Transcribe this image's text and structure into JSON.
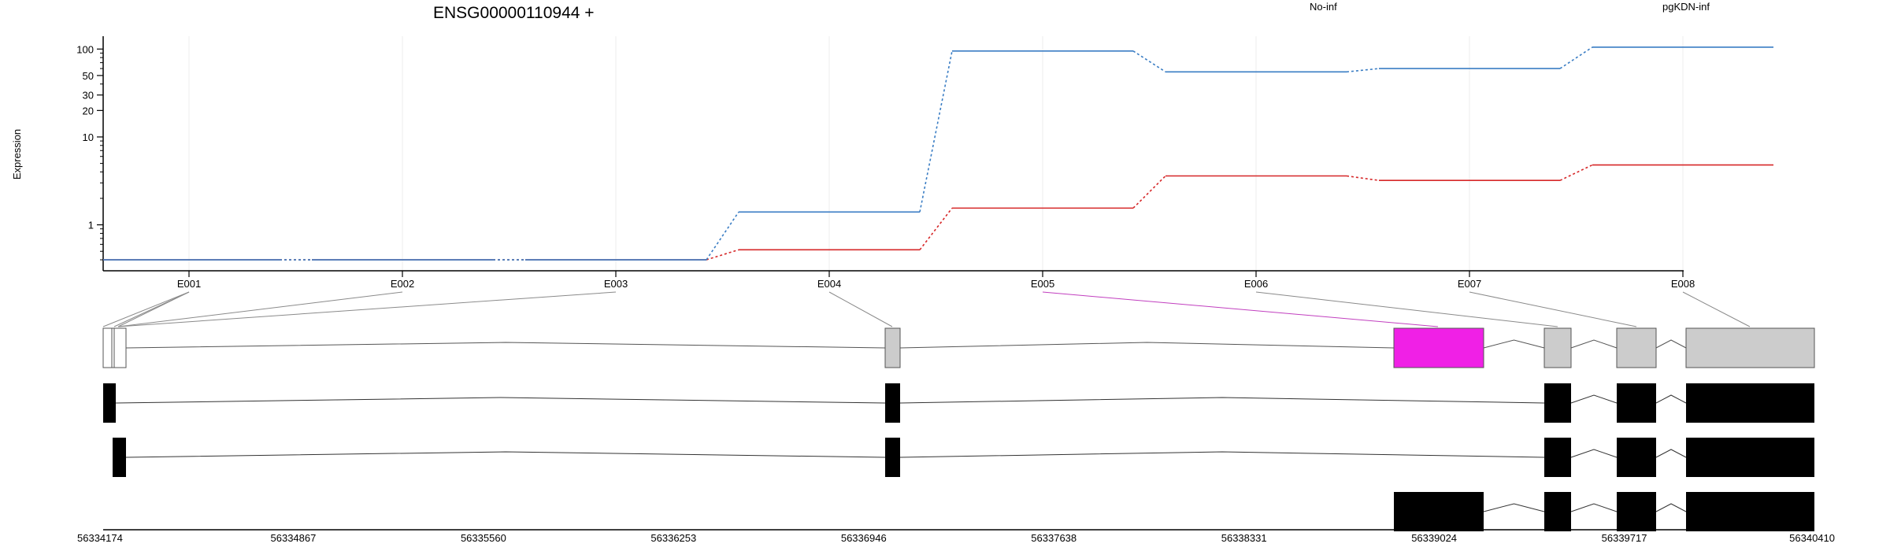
{
  "chart_data": {
    "type": "line",
    "title": "ENSG00000110944 +",
    "ylabel": "Expression",
    "xlabel": "",
    "y_scale": "log",
    "y_ticks": [
      1,
      10,
      20,
      30,
      50,
      100
    ],
    "categories": [
      "E001",
      "E002",
      "E003",
      "E004",
      "E005",
      "E006",
      "E007",
      "E008"
    ],
    "series": [
      {
        "name": "No-inf",
        "color": "#d62728",
        "values": [
          0.4,
          0.4,
          0.4,
          0.52,
          1.55,
          3.6,
          3.2,
          4.8
        ]
      },
      {
        "name": "pgKDN-inf",
        "color": "#3a7dc4",
        "values": [
          0.4,
          0.4,
          0.4,
          1.4,
          95,
          55,
          60,
          105
        ]
      }
    ],
    "grid": true,
    "legend_placement": "top"
  },
  "gene_model": {
    "genomic_axis_ticks": [
      "56334174",
      "56334867",
      "56335560",
      "56336253",
      "56336946",
      "56337638",
      "56338331",
      "56339024",
      "56339717",
      "56340410"
    ],
    "highlight_color": "#f020e6",
    "highlighted_exon": "E005",
    "exon_fill": "#cccccc",
    "transcript_fill": "#000000"
  }
}
